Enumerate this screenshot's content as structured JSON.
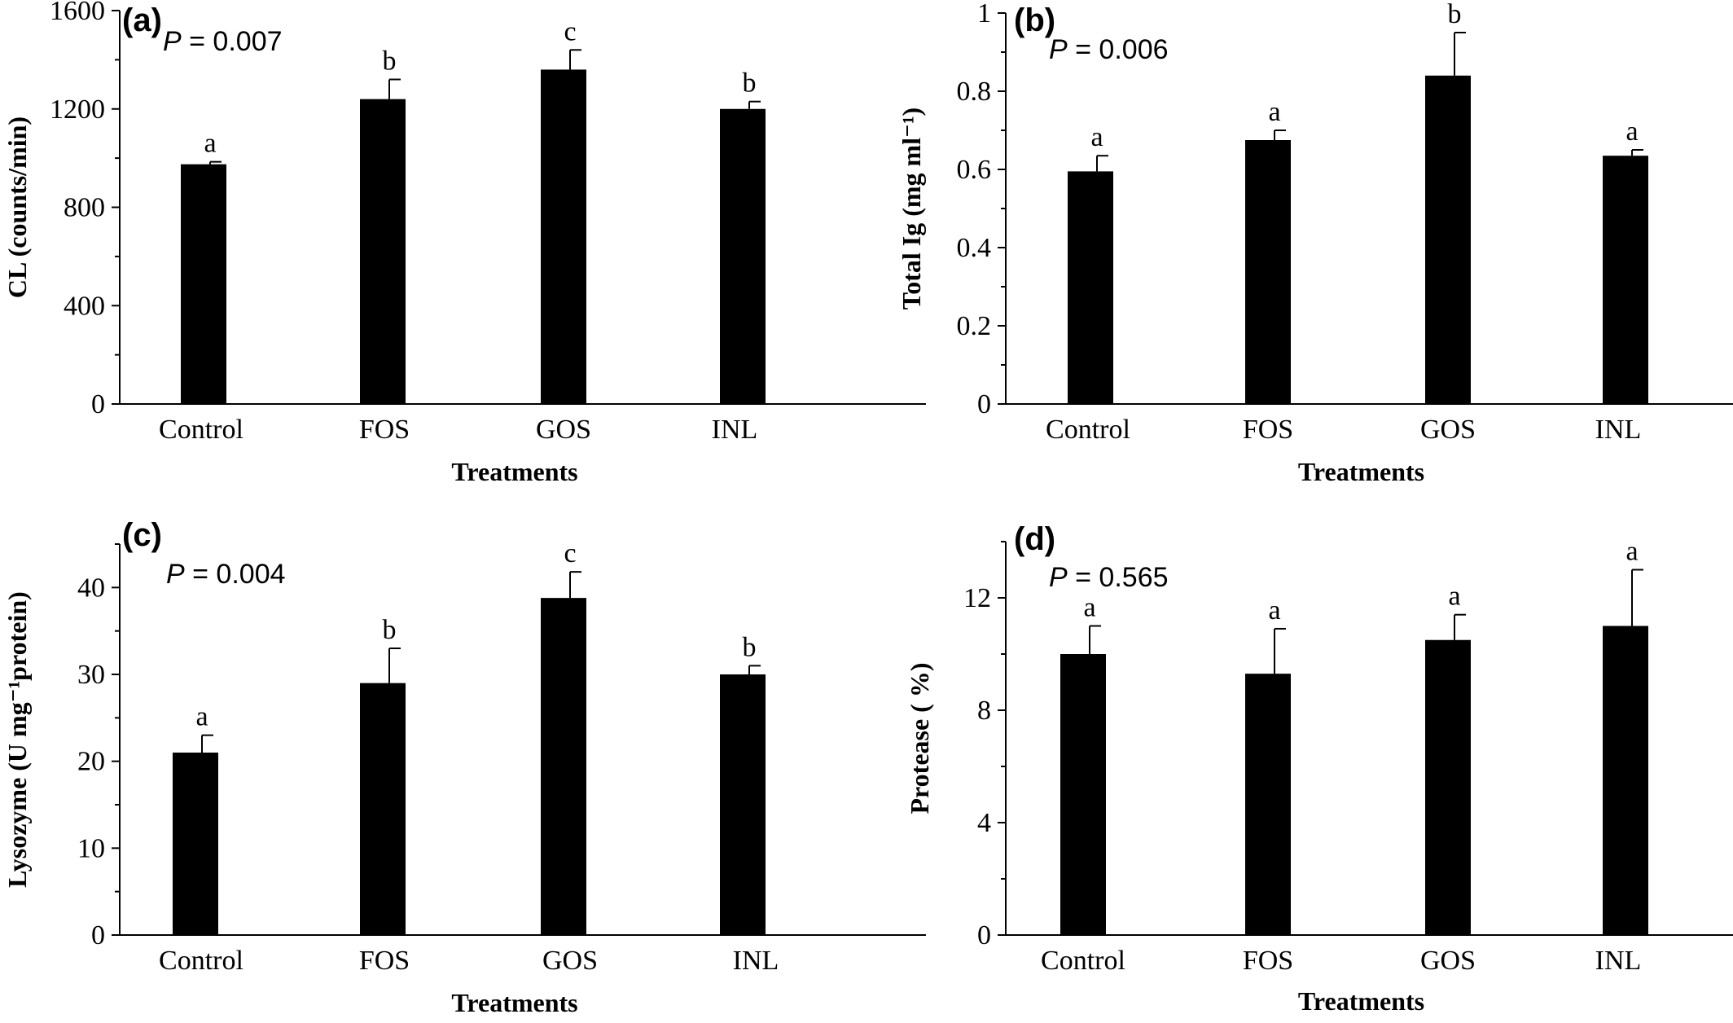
{
  "chart_data": [
    {
      "type": "bar",
      "panel_label": "(a)",
      "p_label": "P",
      "p_value": " = 0.007",
      "categories": [
        "Control",
        "FOS",
        "GOS",
        "INL"
      ],
      "values": [
        975,
        1240,
        1360,
        1200
      ],
      "errors": [
        10,
        80,
        80,
        30
      ],
      "significance": [
        "a",
        "b",
        "c",
        "b"
      ],
      "xlabel": "Treatments",
      "ylabel": "CL (counts/min)",
      "ylim": [
        0,
        1600
      ],
      "yticks": [
        0,
        400,
        800,
        1200,
        1600
      ],
      "ytick_labels": [
        "0",
        "400",
        "800",
        "1200",
        "1600"
      ],
      "minor_yticks": [
        200,
        600,
        1000,
        1400
      ],
      "grid": false
    },
    {
      "type": "bar",
      "panel_label": "(b)",
      "p_label": "P",
      "p_value": " = 0.006",
      "categories": [
        "Control",
        "FOS",
        "GOS",
        "INL"
      ],
      "values": [
        0.595,
        0.675,
        0.84,
        0.635
      ],
      "errors": [
        0.04,
        0.025,
        0.11,
        0.015
      ],
      "significance": [
        "a",
        "a",
        "b",
        "a"
      ],
      "xlabel": "Treatments",
      "ylabel": "Total Ig (mg ml⁻¹)",
      "ylim": [
        0,
        1
      ],
      "yticks": [
        0,
        0.2,
        0.4,
        0.6,
        0.8,
        1
      ],
      "ytick_labels": [
        "0",
        "0.2",
        "0.4",
        "0.6",
        "0.8",
        "1"
      ],
      "minor_yticks": [
        0.1,
        0.3,
        0.5,
        0.7,
        0.9
      ],
      "grid": false
    },
    {
      "type": "bar",
      "panel_label": "(c)",
      "p_label": "P",
      "p_value": " = 0.004",
      "categories": [
        "Control",
        "FOS",
        "GOS",
        "INL"
      ],
      "values": [
        21,
        29,
        38.8,
        30
      ],
      "errors": [
        2,
        4,
        3,
        1
      ],
      "significance": [
        "a",
        "b",
        "c",
        "b"
      ],
      "xlabel": "Treatments",
      "ylabel": "Lysozyme (U mg⁻¹protein)",
      "ylim": [
        0,
        45
      ],
      "yticks": [
        0,
        10,
        20,
        30,
        40
      ],
      "ytick_labels": [
        "0",
        "10",
        "20",
        "30",
        "40"
      ],
      "minor_yticks": [
        5,
        15,
        25,
        35,
        45
      ],
      "grid": false
    },
    {
      "type": "bar",
      "panel_label": "(d)",
      "p_label": "P",
      "p_value": " = 0.565",
      "categories": [
        "Control",
        "FOS",
        "GOS",
        "INL"
      ],
      "values": [
        10,
        9.3,
        10.5,
        11
      ],
      "errors": [
        1,
        1.6,
        0.9,
        2
      ],
      "significance": [
        "a",
        "a",
        "a",
        "a"
      ],
      "xlabel": "Treatments",
      "ylabel": "Protease ( %)",
      "ylim": [
        0,
        14
      ],
      "yticks": [
        0,
        4,
        8,
        12
      ],
      "ytick_labels": [
        "0",
        "4",
        "8",
        "12"
      ],
      "minor_yticks": [
        2,
        6,
        10,
        14
      ],
      "grid": false
    }
  ]
}
